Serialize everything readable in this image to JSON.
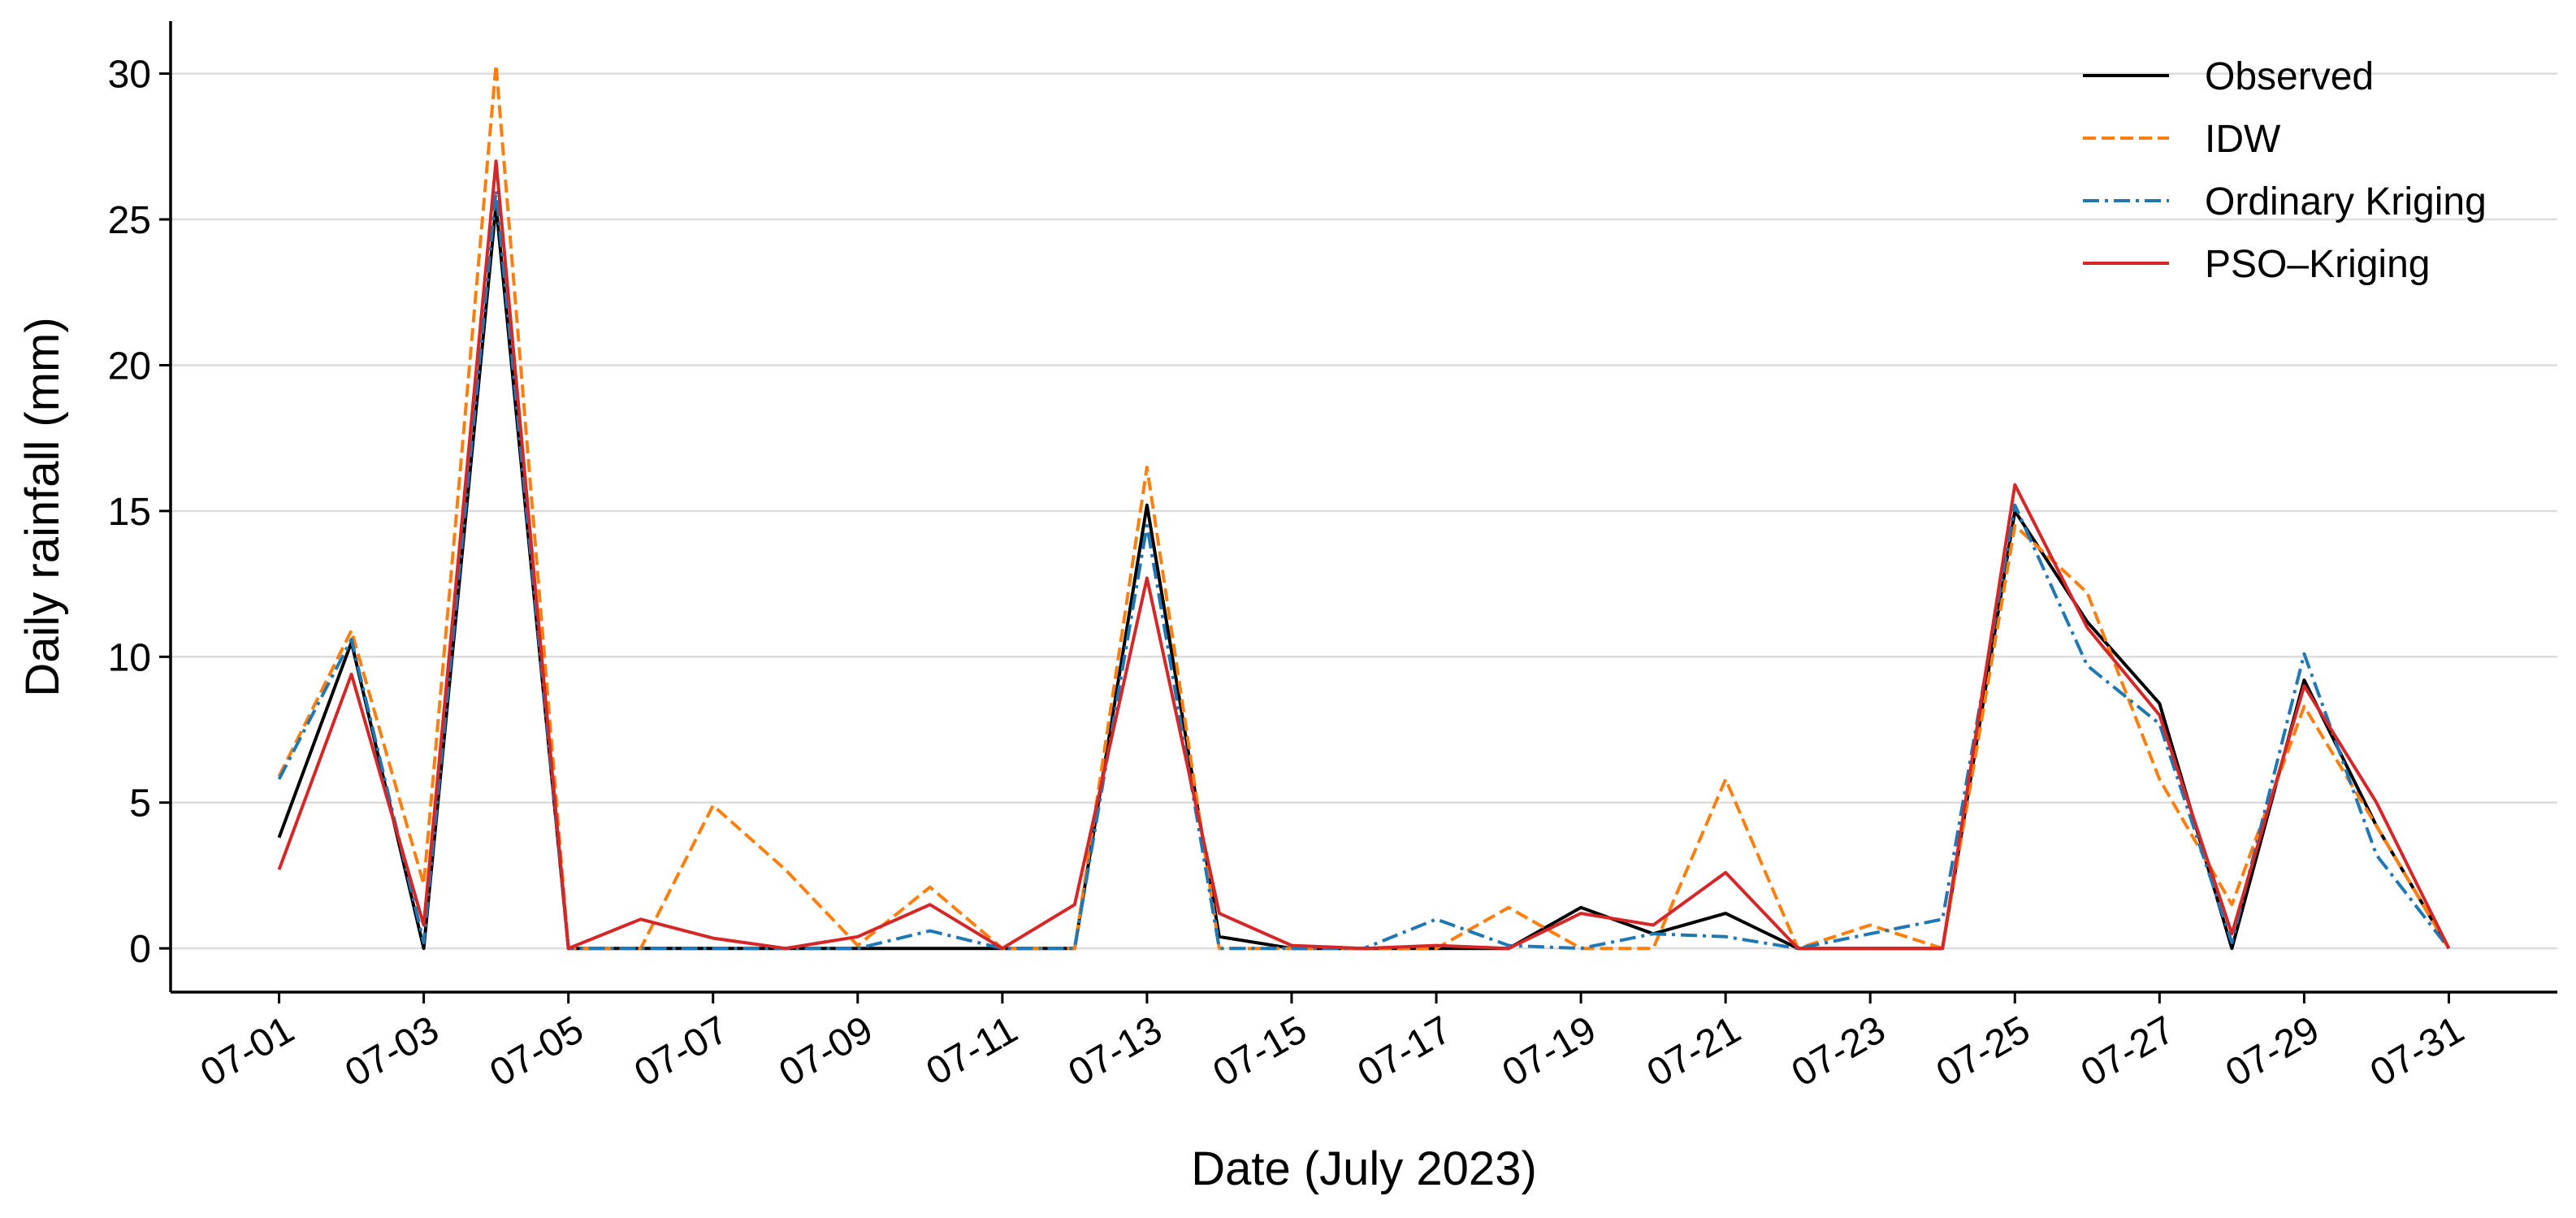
{
  "chart_data": {
    "type": "line",
    "x_label": "Date (July 2023)",
    "y_label": "Daily rainfall (mm)",
    "categories": [
      "07-01",
      null,
      "07-03",
      null,
      "07-05",
      null,
      "07-07",
      null,
      "07-09",
      null,
      "07-11",
      null,
      "07-13",
      null,
      "07-15",
      null,
      "07-17",
      null,
      "07-19",
      null,
      "07-21",
      null,
      "07-23",
      null,
      "07-25",
      null,
      "07-27",
      null,
      "07-29",
      null,
      "07-31"
    ],
    "series": [
      {
        "name": "Observed",
        "color": "#000000",
        "linestyle": "solid",
        "values": [
          3.8,
          10.5,
          0,
          25.5,
          0,
          0,
          0,
          0,
          0,
          0,
          0,
          0,
          15.2,
          0.4,
          0,
          0,
          0,
          0,
          1.4,
          0.5,
          1.2,
          0,
          0,
          0,
          15.0,
          11.2,
          8.4,
          0,
          9.2,
          4.2,
          0
        ]
      },
      {
        "name": "IDW",
        "color": "#ff7f0e",
        "linestyle": "dashed",
        "values": [
          5.9,
          10.9,
          2.2,
          30.3,
          0,
          0,
          4.9,
          2.7,
          0.1,
          2.1,
          0,
          0,
          16.5,
          0,
          0,
          0,
          0,
          1.4,
          0,
          0,
          5.8,
          0,
          0.8,
          0,
          14.5,
          12.2,
          5.8,
          1.5,
          8.3,
          4.2,
          0
        ]
      },
      {
        "name": "Ordinary Kriging",
        "color": "#1f77b4",
        "linestyle": "dashdot",
        "values": [
          5.8,
          10.6,
          0.2,
          26.0,
          0,
          0,
          0,
          0,
          0,
          0.6,
          0,
          0,
          14.5,
          0,
          0,
          0,
          1.0,
          0.1,
          0,
          0.5,
          0.4,
          0,
          0.5,
          1.0,
          15.2,
          9.7,
          7.7,
          0.2,
          10.1,
          3.2,
          0
        ]
      },
      {
        "name": "PSO–Kriging",
        "color": "#d62728",
        "linestyle": "solid",
        "values": [
          2.7,
          9.4,
          0.8,
          27.0,
          0,
          1.0,
          0.35,
          0,
          0.4,
          1.5,
          0,
          1.5,
          12.7,
          1.2,
          0.1,
          0,
          0.1,
          0,
          1.2,
          0.8,
          2.6,
          0,
          0,
          0,
          15.9,
          11.0,
          8.0,
          0.5,
          9.0,
          5.0,
          0
        ]
      }
    ],
    "ylim": [
      -1.5,
      31.8
    ],
    "yticks": [
      0,
      5,
      10,
      15,
      20,
      25,
      30
    ],
    "grid": true,
    "legend": "upper right"
  }
}
